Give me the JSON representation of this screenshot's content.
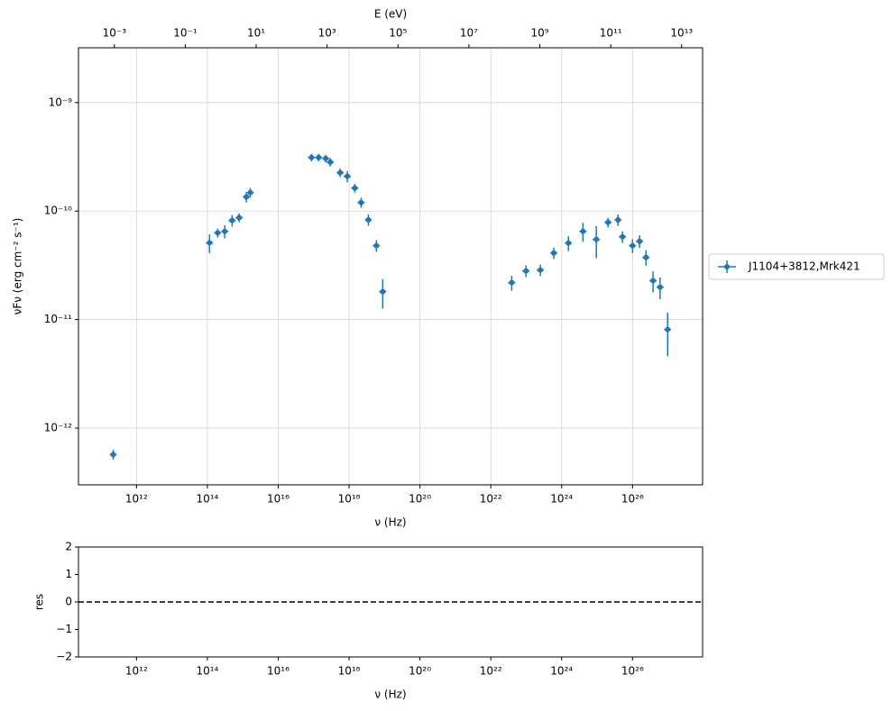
{
  "chart_data": [
    {
      "type": "errorbar",
      "xscale": "log",
      "yscale": "log",
      "grid": true,
      "legend": "outside right",
      "xlabel": "ν  (Hz)",
      "ylabel": "νFν  (erg cm⁻²  s⁻¹)",
      "x2label": "E (eV)",
      "x": [
        220000000000.0,
        115000000000000.0,
        195000000000000.0,
        310000000000000.0,
        500000000000000.0,
        790000000000000.0,
        1260000000000000.0,
        1620000000000000.0,
        8.7e+16,
        1.38e+17,
        2.19e+17,
        2.95e+17,
        5.6e+17,
        8.9e+17,
        1.45e+18,
        2.19e+18,
        3.5e+18,
        5.9e+18,
        8.9e+18,
        3.9e+22,
        9.8e+22,
        2.5e+23,
        6e+23,
        1.55e+24,
        4e+24,
        9.5e+24,
        2.04e+25,
        3.9e+25,
        5.2e+25,
        1e+26,
        1.58e+26,
        2.4e+26,
        3.8e+26,
        6e+26,
        9.8e+26
      ],
      "series": [
        {
          "name": "J1104+3812,Mrk421",
          "color": "#1f77b4",
          "values": [
            5.7e-13,
            5.1e-11,
            6.3e-11,
            6.5e-11,
            8.2e-11,
            8.7e-11,
            1.35e-10,
            1.48e-10,
            3.12e-10,
            3.12e-10,
            3.05e-10,
            2.83e-10,
            2.26e-10,
            2.09e-10,
            1.63e-10,
            1.2e-10,
            8.3e-11,
            4.8e-11,
            1.81e-11,
            2.19e-11,
            2.81e-11,
            2.86e-11,
            4.11e-11,
            5.07e-11,
            6.5e-11,
            5.48e-11,
            7.87e-11,
            8.3e-11,
            5.8e-11,
            4.8e-11,
            5.27e-11,
            3.74e-11,
            2.28e-11,
            1.99e-11,
            8.1e-12
          ],
          "yerr": [
            6e-14,
            1e-11,
            6e-12,
            9e-12,
            1e-11,
            8e-12,
            1.5e-11,
            1.5e-11,
            2.5e-11,
            2.5e-11,
            2.5e-11,
            2.5e-11,
            2e-11,
            2.5e-11,
            1.5e-11,
            1.3e-11,
            1e-11,
            6e-12,
            5.5e-12,
            3.5e-12,
            3.5e-12,
            3.5e-12,
            5e-12,
            8e-12,
            1.3e-11,
            1.8e-11,
            8e-12,
            1e-11,
            7e-12,
            7e-12,
            7e-12,
            6e-12,
            5e-12,
            4.5e-12,
            3.5e-12
          ]
        }
      ],
      "xlim": [
        23000000000.0,
        9.5e+27
      ],
      "ylim": [
        3e-13,
        3.2e-09
      ],
      "xticks": [
        {
          "value": 1000000000000.0,
          "label": "10¹²"
        },
        {
          "value": 100000000000000.0,
          "label": "10¹⁴"
        },
        {
          "value": 1e+16,
          "label": "10¹⁶"
        },
        {
          "value": 1e+18,
          "label": "10¹⁸"
        },
        {
          "value": 1e+20,
          "label": "10²⁰"
        },
        {
          "value": 1e+22,
          "label": "10²²"
        },
        {
          "value": 1e+24,
          "label": "10²⁴"
        },
        {
          "value": 1e+26,
          "label": "10²⁶"
        }
      ],
      "yticks": [
        {
          "value": 1e-12,
          "label": "10⁻¹²"
        },
        {
          "value": 1e-11,
          "label": "10⁻¹¹"
        },
        {
          "value": 1e-10,
          "label": "10⁻¹⁰"
        },
        {
          "value": 1e-09,
          "label": "10⁻⁹"
        }
      ],
      "x2lim": [
        9.7e-05,
        39000000000000.0
      ],
      "x2ticks": [
        {
          "value": 0.001,
          "label": "10⁻³"
        },
        {
          "value": 0.1,
          "label": "10⁻¹"
        },
        {
          "value": 10,
          "label": "10¹"
        },
        {
          "value": 1000.0,
          "label": "10³"
        },
        {
          "value": 100000.0,
          "label": "10⁵"
        },
        {
          "value": 10000000.0,
          "label": "10⁷"
        },
        {
          "value": 1000000000.0,
          "label": "10⁹"
        },
        {
          "value": 100000000000.0,
          "label": "10¹¹"
        },
        {
          "value": 10000000000000.0,
          "label": "10¹³"
        }
      ]
    },
    {
      "type": "residual",
      "xscale": "log",
      "xlabel": "ν  (Hz)",
      "ylabel": "res",
      "reference_line": 0,
      "xlim": [
        23000000000.0,
        9.5e+27
      ],
      "ylim": [
        -2,
        2
      ],
      "xticks": [
        {
          "value": 1000000000000.0,
          "label": "10¹²"
        },
        {
          "value": 100000000000000.0,
          "label": "10¹⁴"
        },
        {
          "value": 1e+16,
          "label": "10¹⁶"
        },
        {
          "value": 1e+18,
          "label": "10¹⁸"
        },
        {
          "value": 1e+20,
          "label": "10²⁰"
        },
        {
          "value": 1e+22,
          "label": "10²²"
        },
        {
          "value": 1e+24,
          "label": "10²⁴"
        },
        {
          "value": 1e+26,
          "label": "10²⁶"
        }
      ],
      "yticks": [
        {
          "value": -2,
          "label": "−2"
        },
        {
          "value": -1,
          "label": "−1"
        },
        0,
        1,
        2
      ]
    }
  ]
}
